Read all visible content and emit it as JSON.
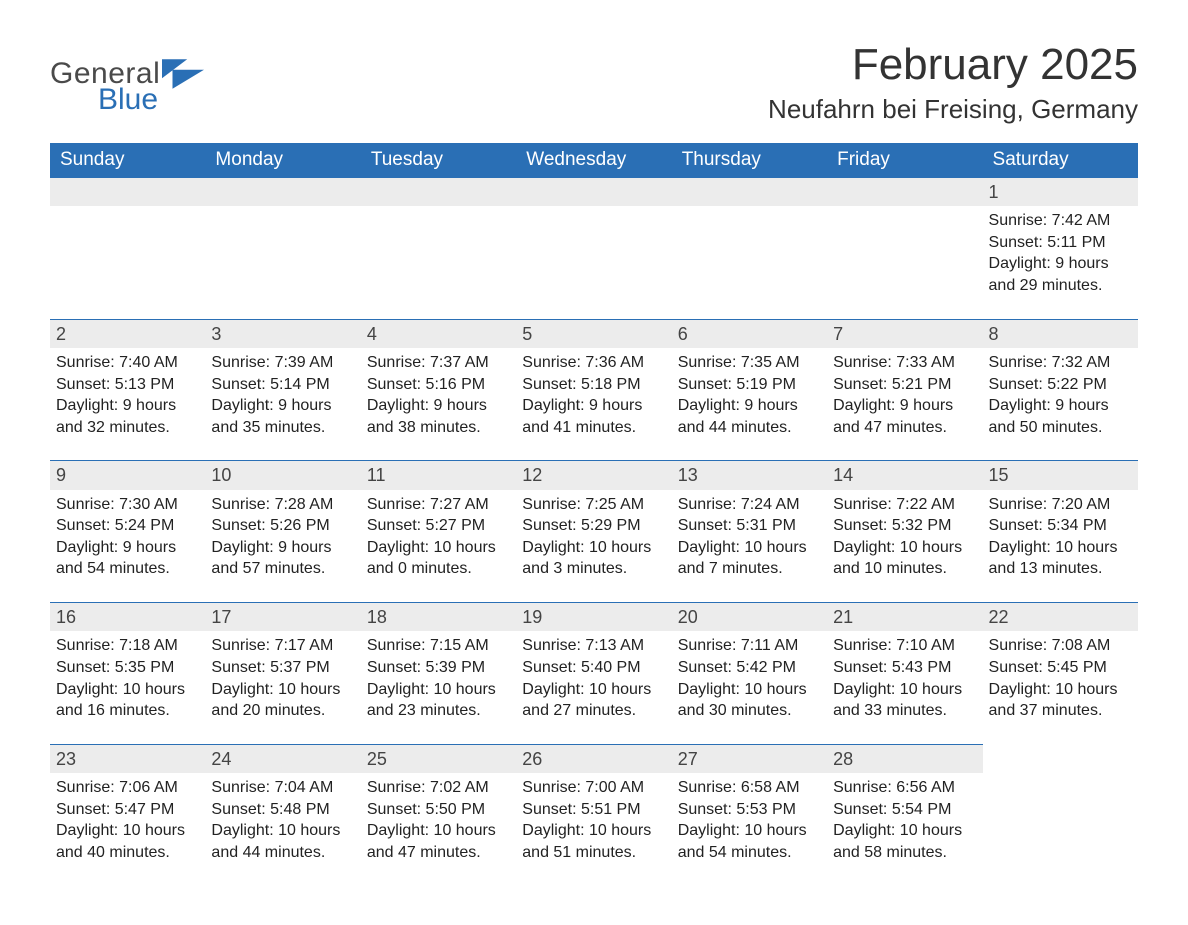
{
  "logo": {
    "general": "General",
    "blue": "Blue",
    "color_gray": "#4a4a4a",
    "color_blue": "#2a6fb5"
  },
  "header": {
    "month_year": "February 2025",
    "location": "Neufahrn bei Freising, Germany"
  },
  "colors": {
    "header_bg": "#2a6fb5",
    "row_divider": "#2a6fb5",
    "daynum_bg": "#ececec",
    "text": "#222222"
  },
  "day_labels": [
    "Sunday",
    "Monday",
    "Tuesday",
    "Wednesday",
    "Thursday",
    "Friday",
    "Saturday"
  ],
  "label_prefix": {
    "sunrise": "Sunrise: ",
    "sunset": "Sunset: ",
    "daylight": "Daylight: "
  },
  "grid": {
    "first_weekday_index": 6,
    "days_in_month": 28
  },
  "days": {
    "1": {
      "sunrise": "7:42 AM",
      "sunset": "5:11 PM",
      "daylight": "9 hours and 29 minutes."
    },
    "2": {
      "sunrise": "7:40 AM",
      "sunset": "5:13 PM",
      "daylight": "9 hours and 32 minutes."
    },
    "3": {
      "sunrise": "7:39 AM",
      "sunset": "5:14 PM",
      "daylight": "9 hours and 35 minutes."
    },
    "4": {
      "sunrise": "7:37 AM",
      "sunset": "5:16 PM",
      "daylight": "9 hours and 38 minutes."
    },
    "5": {
      "sunrise": "7:36 AM",
      "sunset": "5:18 PM",
      "daylight": "9 hours and 41 minutes."
    },
    "6": {
      "sunrise": "7:35 AM",
      "sunset": "5:19 PM",
      "daylight": "9 hours and 44 minutes."
    },
    "7": {
      "sunrise": "7:33 AM",
      "sunset": "5:21 PM",
      "daylight": "9 hours and 47 minutes."
    },
    "8": {
      "sunrise": "7:32 AM",
      "sunset": "5:22 PM",
      "daylight": "9 hours and 50 minutes."
    },
    "9": {
      "sunrise": "7:30 AM",
      "sunset": "5:24 PM",
      "daylight": "9 hours and 54 minutes."
    },
    "10": {
      "sunrise": "7:28 AM",
      "sunset": "5:26 PM",
      "daylight": "9 hours and 57 minutes."
    },
    "11": {
      "sunrise": "7:27 AM",
      "sunset": "5:27 PM",
      "daylight": "10 hours and 0 minutes."
    },
    "12": {
      "sunrise": "7:25 AM",
      "sunset": "5:29 PM",
      "daylight": "10 hours and 3 minutes."
    },
    "13": {
      "sunrise": "7:24 AM",
      "sunset": "5:31 PM",
      "daylight": "10 hours and 7 minutes."
    },
    "14": {
      "sunrise": "7:22 AM",
      "sunset": "5:32 PM",
      "daylight": "10 hours and 10 minutes."
    },
    "15": {
      "sunrise": "7:20 AM",
      "sunset": "5:34 PM",
      "daylight": "10 hours and 13 minutes."
    },
    "16": {
      "sunrise": "7:18 AM",
      "sunset": "5:35 PM",
      "daylight": "10 hours and 16 minutes."
    },
    "17": {
      "sunrise": "7:17 AM",
      "sunset": "5:37 PM",
      "daylight": "10 hours and 20 minutes."
    },
    "18": {
      "sunrise": "7:15 AM",
      "sunset": "5:39 PM",
      "daylight": "10 hours and 23 minutes."
    },
    "19": {
      "sunrise": "7:13 AM",
      "sunset": "5:40 PM",
      "daylight": "10 hours and 27 minutes."
    },
    "20": {
      "sunrise": "7:11 AM",
      "sunset": "5:42 PM",
      "daylight": "10 hours and 30 minutes."
    },
    "21": {
      "sunrise": "7:10 AM",
      "sunset": "5:43 PM",
      "daylight": "10 hours and 33 minutes."
    },
    "22": {
      "sunrise": "7:08 AM",
      "sunset": "5:45 PM",
      "daylight": "10 hours and 37 minutes."
    },
    "23": {
      "sunrise": "7:06 AM",
      "sunset": "5:47 PM",
      "daylight": "10 hours and 40 minutes."
    },
    "24": {
      "sunrise": "7:04 AM",
      "sunset": "5:48 PM",
      "daylight": "10 hours and 44 minutes."
    },
    "25": {
      "sunrise": "7:02 AM",
      "sunset": "5:50 PM",
      "daylight": "10 hours and 47 minutes."
    },
    "26": {
      "sunrise": "7:00 AM",
      "sunset": "5:51 PM",
      "daylight": "10 hours and 51 minutes."
    },
    "27": {
      "sunrise": "6:58 AM",
      "sunset": "5:53 PM",
      "daylight": "10 hours and 54 minutes."
    },
    "28": {
      "sunrise": "6:56 AM",
      "sunset": "5:54 PM",
      "daylight": "10 hours and 58 minutes."
    }
  }
}
